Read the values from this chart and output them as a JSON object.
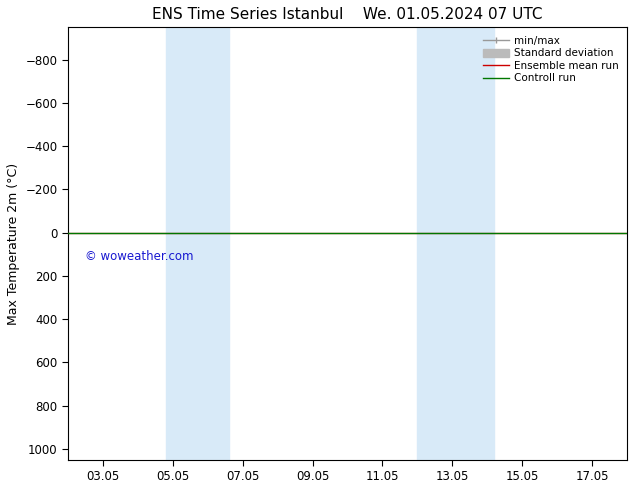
{
  "title_left": "ENS Time Series Istanbul",
  "title_right": "We. 01.05.2024 07 UTC",
  "ylabel": "Max Temperature 2m (°C)",
  "ylim_top": -950,
  "ylim_bottom": 1050,
  "yticks": [
    -800,
    -600,
    -400,
    -200,
    0,
    200,
    400,
    600,
    800,
    1000
  ],
  "xtick_labels": [
    "03.05",
    "05.05",
    "07.05",
    "09.05",
    "11.05",
    "13.05",
    "15.05",
    "17.05"
  ],
  "xtick_positions": [
    2,
    4,
    6,
    8,
    10,
    12,
    14,
    16
  ],
  "xlim": [
    1,
    17
  ],
  "shaded_bands": [
    {
      "x_start": 3.8,
      "x_end": 5.6
    },
    {
      "x_start": 11.0,
      "x_end": 13.2
    }
  ],
  "shade_color": "#d8eaf8",
  "control_run_y": 0,
  "control_run_color": "#007700",
  "ensemble_mean_color": "#cc0000",
  "watermark": "© woweather.com",
  "watermark_color": "#0000cc",
  "background_color": "#ffffff",
  "legend_items": [
    {
      "label": "min/max",
      "color": "#999999",
      "lw": 1
    },
    {
      "label": "Standard deviation",
      "color": "#bbbbbb",
      "lw": 5
    },
    {
      "label": "Ensemble mean run",
      "color": "#cc0000",
      "lw": 1
    },
    {
      "label": "Controll run",
      "color": "#007700",
      "lw": 1
    }
  ],
  "title_fontsize": 11,
  "ylabel_fontsize": 9,
  "tick_fontsize": 8.5,
  "legend_fontsize": 7.5
}
